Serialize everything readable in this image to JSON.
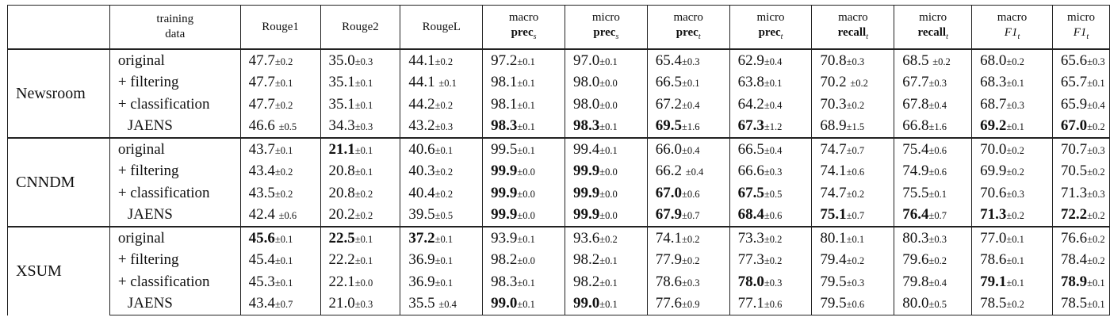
{
  "table": {
    "header": {
      "group_line1": "training",
      "group_line2": "data",
      "columns": [
        {
          "line1": "Rouge1",
          "line2": "",
          "sub": ""
        },
        {
          "line1": "Rouge2",
          "line2": "",
          "sub": ""
        },
        {
          "line1": "RougeL",
          "line2": "",
          "sub": ""
        },
        {
          "line1": "macro",
          "line2": "prec",
          "sub": "s"
        },
        {
          "line1": "micro",
          "line2": "prec",
          "sub": "s"
        },
        {
          "line1": "macro",
          "line2": "prec",
          "sub": "t"
        },
        {
          "line1": "micro",
          "line2": "prec",
          "sub": "t"
        },
        {
          "line1": "macro",
          "line2": "recall",
          "sub": "t"
        },
        {
          "line1": "micro",
          "line2": "recall",
          "sub": "t"
        },
        {
          "line1": "macro",
          "line2": "F1",
          "sub": "t"
        },
        {
          "line1": "micro",
          "line2": "F1",
          "sub": "t"
        }
      ]
    },
    "groups": [
      {
        "dataset": "Newsroom",
        "rows": [
          {
            "setting": "original",
            "cells": [
              {
                "m": "47.7",
                "s": "±0.2",
                "b": false
              },
              {
                "m": "35.0",
                "s": "±0.3",
                "b": false
              },
              {
                "m": "44.1",
                "s": "±0.2",
                "b": false
              },
              {
                "m": "97.2",
                "s": "±0.1",
                "b": false
              },
              {
                "m": "97.0",
                "s": "±0.1",
                "b": false
              },
              {
                "m": "65.4",
                "s": "±0.3",
                "b": false
              },
              {
                "m": "62.9",
                "s": "±0.4",
                "b": false
              },
              {
                "m": "70.8",
                "s": "±0.3",
                "b": false
              },
              {
                "m": "68.5 ",
                "s": "±0.2",
                "b": false
              },
              {
                "m": "68.0",
                "s": "±0.2",
                "b": false
              },
              {
                "m": "65.6",
                "s": "±0.3",
                "b": false
              }
            ]
          },
          {
            "setting": "+ filtering",
            "cells": [
              {
                "m": "47.7",
                "s": "±0.1",
                "b": false
              },
              {
                "m": "35.1",
                "s": "±0.1",
                "b": false
              },
              {
                "m": "44.1 ",
                "s": "±0.1",
                "b": false
              },
              {
                "m": "98.1",
                "s": "±0.1",
                "b": false
              },
              {
                "m": "98.0",
                "s": "±0.0",
                "b": false
              },
              {
                "m": "66.5",
                "s": "±0.1",
                "b": false
              },
              {
                "m": "63.8",
                "s": "±0.1",
                "b": false
              },
              {
                "m": "70.2 ",
                "s": "±0.2",
                "b": false
              },
              {
                "m": "67.7",
                "s": "±0.3",
                "b": false
              },
              {
                "m": "68.3",
                "s": "±0.1",
                "b": false
              },
              {
                "m": "65.7",
                "s": "±0.1",
                "b": false
              }
            ]
          },
          {
            "setting": "+ classification",
            "cells": [
              {
                "m": "47.7",
                "s": "±0.2",
                "b": false
              },
              {
                "m": "35.1",
                "s": "±0.1",
                "b": false
              },
              {
                "m": "44.2",
                "s": "±0.2",
                "b": false
              },
              {
                "m": "98.1",
                "s": "±0.1",
                "b": false
              },
              {
                "m": "98.0",
                "s": "±0.0",
                "b": false
              },
              {
                "m": "67.2",
                "s": "±0.4",
                "b": false
              },
              {
                "m": "64.2",
                "s": "±0.4",
                "b": false
              },
              {
                "m": "70.3",
                "s": "±0.2",
                "b": false
              },
              {
                "m": "67.8",
                "s": "±0.4",
                "b": false
              },
              {
                "m": "68.7",
                "s": "±0.3",
                "b": false
              },
              {
                "m": "65.9",
                "s": "±0.4",
                "b": false
              }
            ]
          },
          {
            "setting": "JAENS",
            "cells": [
              {
                "m": "46.6 ",
                "s": "±0.5",
                "b": false
              },
              {
                "m": "34.3",
                "s": "±0.3",
                "b": false
              },
              {
                "m": "43.2",
                "s": "±0.3",
                "b": false
              },
              {
                "m": "98.3",
                "s": "±0.1",
                "b": true
              },
              {
                "m": "98.3",
                "s": "±0.1",
                "b": true
              },
              {
                "m": "69.5",
                "s": "±1.6",
                "b": true
              },
              {
                "m": "67.3",
                "s": "±1.2",
                "b": true
              },
              {
                "m": "68.9",
                "s": "±1.5",
                "b": false
              },
              {
                "m": "66.8",
                "s": "±1.6",
                "b": false
              },
              {
                "m": "69.2",
                "s": "±0.1",
                "b": true
              },
              {
                "m": "67.0",
                "s": "±0.2",
                "b": true
              }
            ]
          }
        ]
      },
      {
        "dataset": "CNNDM",
        "rows": [
          {
            "setting": "original",
            "cells": [
              {
                "m": "43.7",
                "s": "±0.1",
                "b": false
              },
              {
                "m": "21.1",
                "s": "±0.1",
                "b": true
              },
              {
                "m": "40.6",
                "s": "±0.1",
                "b": false
              },
              {
                "m": "99.5",
                "s": "±0.1",
                "b": false
              },
              {
                "m": "99.4",
                "s": "±0.1",
                "b": false
              },
              {
                "m": "66.0",
                "s": "±0.4",
                "b": false
              },
              {
                "m": "66.5",
                "s": "±0.4",
                "b": false
              },
              {
                "m": "74.7",
                "s": "±0.7",
                "b": false
              },
              {
                "m": "75.4",
                "s": "±0.6",
                "b": false
              },
              {
                "m": "70.0",
                "s": "±0.2",
                "b": false
              },
              {
                "m": "70.7",
                "s": "±0.3",
                "b": false
              }
            ]
          },
          {
            "setting": "+ filtering",
            "cells": [
              {
                "m": "43.4",
                "s": "±0.2",
                "b": false
              },
              {
                "m": "20.8",
                "s": "±0.1",
                "b": false
              },
              {
                "m": "40.3",
                "s": "±0.2",
                "b": false
              },
              {
                "m": "99.9",
                "s": "±0.0",
                "b": true
              },
              {
                "m": "99.9",
                "s": "±0.0",
                "b": true
              },
              {
                "m": "66.2 ",
                "s": "±0.4",
                "b": false
              },
              {
                "m": "66.6",
                "s": "±0.3",
                "b": false
              },
              {
                "m": "74.1",
                "s": "±0.6",
                "b": false
              },
              {
                "m": "74.9",
                "s": "±0.6",
                "b": false
              },
              {
                "m": "69.9",
                "s": "±0.2",
                "b": false
              },
              {
                "m": "70.5",
                "s": "±0.2",
                "b": false
              }
            ]
          },
          {
            "setting": "+ classification",
            "cells": [
              {
                "m": "43.5",
                "s": "±0.2",
                "b": false
              },
              {
                "m": "20.8",
                "s": "±0.2",
                "b": false
              },
              {
                "m": "40.4",
                "s": "±0.2",
                "b": false
              },
              {
                "m": "99.9",
                "s": "±0.0",
                "b": true
              },
              {
                "m": "99.9",
                "s": "±0.0",
                "b": true
              },
              {
                "m": "67.0",
                "s": "±0.6",
                "b": true
              },
              {
                "m": "67.5",
                "s": "±0.5",
                "b": true
              },
              {
                "m": "74.7",
                "s": "±0.2",
                "b": false
              },
              {
                "m": "75.5",
                "s": "±0.1",
                "b": false
              },
              {
                "m": "70.6",
                "s": "±0.3",
                "b": false
              },
              {
                "m": "71.3",
                "s": "±0.3",
                "b": false
              }
            ]
          },
          {
            "setting": "JAENS",
            "cells": [
              {
                "m": "42.4 ",
                "s": "±0.6",
                "b": false
              },
              {
                "m": "20.2",
                "s": "±0.2",
                "b": false
              },
              {
                "m": "39.5",
                "s": "±0.5",
                "b": false
              },
              {
                "m": "99.9",
                "s": "±0.0",
                "b": true
              },
              {
                "m": "99.9",
                "s": "±0.0",
                "b": true
              },
              {
                "m": "67.9",
                "s": "±0.7",
                "b": true
              },
              {
                "m": "68.4",
                "s": "±0.6",
                "b": true
              },
              {
                "m": "75.1",
                "s": "±0.7",
                "b": true
              },
              {
                "m": "76.4",
                "s": "±0.7",
                "b": true
              },
              {
                "m": "71.3",
                "s": "±0.2",
                "b": true
              },
              {
                "m": "72.2",
                "s": "±0.2",
                "b": true
              }
            ]
          }
        ]
      },
      {
        "dataset": "XSUM",
        "rows": [
          {
            "setting": "original",
            "cells": [
              {
                "m": "45.6",
                "s": "±0.1",
                "b": true
              },
              {
                "m": "22.5",
                "s": "±0.1",
                "b": true
              },
              {
                "m": "37.2",
                "s": "±0.1",
                "b": true
              },
              {
                "m": "93.9",
                "s": "±0.1",
                "b": false
              },
              {
                "m": "93.6",
                "s": "±0.2",
                "b": false
              },
              {
                "m": "74.1",
                "s": "±0.2",
                "b": false
              },
              {
                "m": "73.3",
                "s": "±0.2",
                "b": false
              },
              {
                "m": "80.1",
                "s": "±0.1",
                "b": false
              },
              {
                "m": "80.3",
                "s": "±0.3",
                "b": false
              },
              {
                "m": "77.0",
                "s": "±0.1",
                "b": false
              },
              {
                "m": "76.6",
                "s": "±0.2",
                "b": false
              }
            ]
          },
          {
            "setting": "+ filtering",
            "cells": [
              {
                "m": "45.4",
                "s": "±0.1",
                "b": false
              },
              {
                "m": "22.2",
                "s": "±0.1",
                "b": false
              },
              {
                "m": "36.9",
                "s": "±0.1",
                "b": false
              },
              {
                "m": "98.2",
                "s": "±0.0",
                "b": false
              },
              {
                "m": "98.2",
                "s": "±0.1",
                "b": false
              },
              {
                "m": "77.9",
                "s": "±0.2",
                "b": false
              },
              {
                "m": "77.3",
                "s": "±0.2",
                "b": false
              },
              {
                "m": "79.4",
                "s": "±0.2",
                "b": false
              },
              {
                "m": "79.6",
                "s": "±0.2",
                "b": false
              },
              {
                "m": "78.6",
                "s": "±0.1",
                "b": false
              },
              {
                "m": "78.4",
                "s": "±0.2",
                "b": false
              }
            ]
          },
          {
            "setting": "+ classification",
            "cells": [
              {
                "m": "45.3",
                "s": "±0.1",
                "b": false
              },
              {
                "m": "22.1",
                "s": "±0.0",
                "b": false
              },
              {
                "m": "36.9",
                "s": "±0.1",
                "b": false
              },
              {
                "m": "98.3",
                "s": "±0.1",
                "b": false
              },
              {
                "m": "98.2",
                "s": "±0.1",
                "b": false
              },
              {
                "m": "78.6",
                "s": "±0.3",
                "b": false
              },
              {
                "m": "78.0",
                "s": "±0.3",
                "b": true
              },
              {
                "m": "79.5",
                "s": "±0.3",
                "b": false
              },
              {
                "m": "79.8",
                "s": "±0.4",
                "b": false
              },
              {
                "m": "79.1",
                "s": "±0.1",
                "b": true
              },
              {
                "m": "78.9",
                "s": "±0.1",
                "b": true
              }
            ]
          },
          {
            "setting": "JAENS",
            "cells": [
              {
                "m": "43.4",
                "s": "±0.7",
                "b": false
              },
              {
                "m": "21.0",
                "s": "±0.3",
                "b": false
              },
              {
                "m": "35.5 ",
                "s": "±0.4",
                "b": false
              },
              {
                "m": "99.0",
                "s": "±0.1",
                "b": true
              },
              {
                "m": "99.0",
                "s": "±0.1",
                "b": true
              },
              {
                "m": "77.6",
                "s": "±0.9",
                "b": false
              },
              {
                "m": "77.1",
                "s": "±0.6",
                "b": false
              },
              {
                "m": "79.5",
                "s": "±0.6",
                "b": false
              },
              {
                "m": "80.0",
                "s": "±0.5",
                "b": false
              },
              {
                "m": "78.5",
                "s": "±0.2",
                "b": false
              },
              {
                "m": "78.5",
                "s": "±0.1",
                "b": false
              }
            ]
          }
        ]
      }
    ]
  }
}
